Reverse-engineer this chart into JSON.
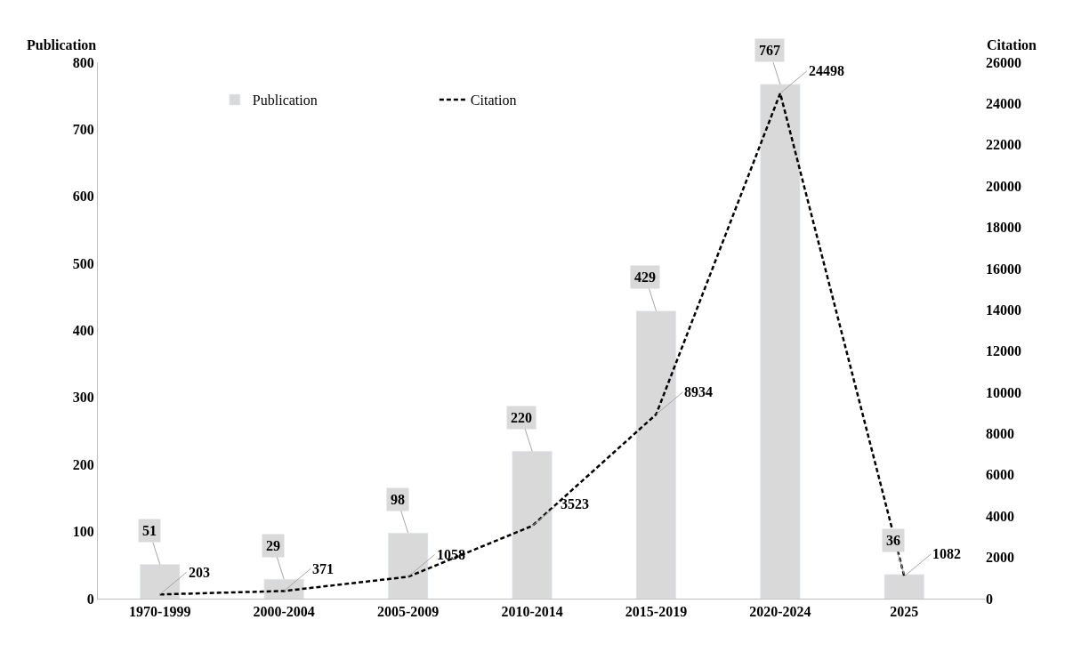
{
  "chart_data": {
    "type": "bar",
    "categories": [
      "1970-1999",
      "2000-2004",
      "2005-2009",
      "2010-2014",
      "2015-2019",
      "2020-2024",
      "2025"
    ],
    "series": [
      {
        "name": "Publication",
        "color": "#d9d9d9",
        "values": [
          51,
          29,
          98,
          220,
          429,
          767,
          36
        ]
      },
      {
        "name": "Citation",
        "type": "line",
        "axis": "y2",
        "color": "#000000",
        "line_style": "dashed",
        "marker": "none",
        "values": [
          203,
          371,
          1058,
          3523,
          8934,
          24498,
          1082
        ]
      }
    ],
    "ylabel": "Publication",
    "y2label": "Citation",
    "ylim": [
      0,
      800
    ],
    "yticks": [
      0,
      100,
      200,
      300,
      400,
      500,
      600,
      700,
      800
    ],
    "y2lim": [
      0,
      26000
    ],
    "y2ticks": [
      0,
      2000,
      4000,
      6000,
      8000,
      10000,
      12000,
      14000,
      16000,
      18000,
      20000,
      22000,
      24000,
      26000
    ],
    "data_labels": true,
    "legend": "top"
  }
}
